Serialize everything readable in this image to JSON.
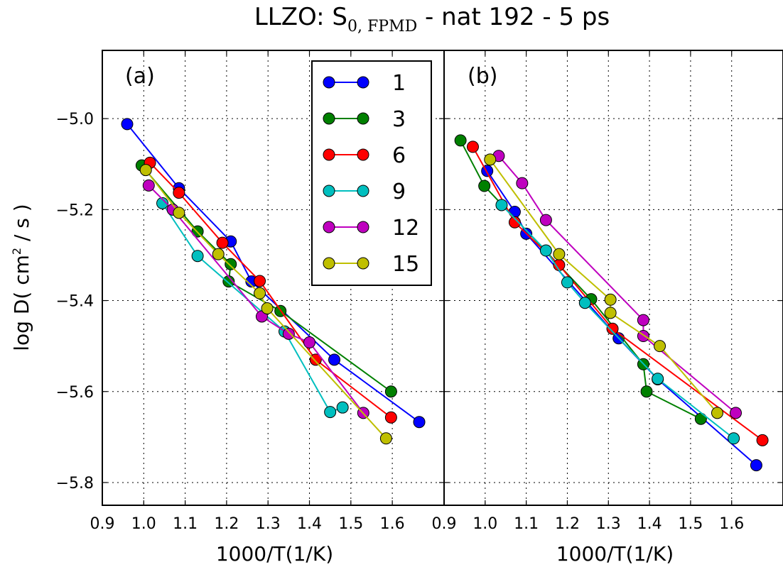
{
  "figure": {
    "title_main": "LLZO: S",
    "title_sub": "0, FPMD",
    "title_rest": " - nat 192 - 5 ps",
    "ylabel": "log D( cm",
    "ylabel_sup": "2",
    "ylabel_end": " / s )"
  },
  "chart_data": [
    {
      "type": "line",
      "panel_label": "(a)",
      "xlabel": "1000/T(1/K)",
      "xlim": [
        0.9,
        1.725
      ],
      "ylim": [
        -5.85,
        -4.85
      ],
      "xticks": [
        0.9,
        1.0,
        1.1,
        1.2,
        1.3,
        1.4,
        1.5,
        1.6
      ],
      "xtick_labels": [
        "0.9",
        "1.0",
        "1.1",
        "1.2",
        "1.3",
        "1.4",
        "1.5",
        "1.6"
      ],
      "yticks": [
        -5.0,
        -5.2,
        -5.4,
        -5.6,
        -5.8
      ],
      "ytick_labels": [
        "−5.0",
        "−5.2",
        "−5.4",
        "−5.6",
        "−5.8"
      ],
      "grid": true,
      "legend_position": "top-right",
      "series": [
        {
          "name": "1",
          "color": "#0000ff",
          "x": [
            0.96,
            1.085,
            1.21,
            1.26,
            1.46,
            1.665
          ],
          "y": [
            -5.012,
            -5.153,
            -5.27,
            -5.358,
            -5.53,
            -5.667
          ]
        },
        {
          "name": "3",
          "color": "#008000",
          "x": [
            0.995,
            1.13,
            1.21,
            1.205,
            1.33,
            1.597
          ],
          "y": [
            -5.103,
            -5.248,
            -5.32,
            -5.358,
            -5.423,
            -5.6
          ]
        },
        {
          "name": "6",
          "color": "#ff0000",
          "x": [
            1.015,
            1.085,
            1.19,
            1.28,
            1.415,
            1.597
          ],
          "y": [
            -5.097,
            -5.163,
            -5.273,
            -5.357,
            -5.53,
            -5.657
          ]
        },
        {
          "name": "9",
          "color": "#00bfbf",
          "x": [
            1.045,
            1.13,
            1.34,
            1.45,
            1.48
          ],
          "y": [
            -5.186,
            -5.302,
            -5.468,
            -5.645,
            -5.635
          ]
        },
        {
          "name": "12",
          "color": "#bf00bf",
          "x": [
            1.012,
            1.07,
            1.285,
            1.35,
            1.4,
            1.53
          ],
          "y": [
            -5.147,
            -5.2,
            -5.435,
            -5.473,
            -5.492,
            -5.647
          ]
        },
        {
          "name": "15",
          "color": "#bfbf00",
          "x": [
            1.005,
            1.085,
            1.18,
            1.28,
            1.298,
            1.585
          ],
          "y": [
            -5.113,
            -5.207,
            -5.298,
            -5.384,
            -5.417,
            -5.703
          ]
        }
      ]
    },
    {
      "type": "line",
      "panel_label": "(b)",
      "xlabel": "1000/T(1/K)",
      "xlim": [
        0.9,
        1.725
      ],
      "ylim": [
        -5.85,
        -4.85
      ],
      "xticks": [
        0.9,
        1.0,
        1.1,
        1.2,
        1.3,
        1.4,
        1.5,
        1.6
      ],
      "xtick_labels": [
        "0.9",
        "1.0",
        "1.1",
        "1.2",
        "1.3",
        "1.4",
        "1.5",
        "1.6"
      ],
      "yticks": [
        -5.0,
        -5.2,
        -5.4,
        -5.6,
        -5.8
      ],
      "grid": true,
      "series": [
        {
          "name": "1",
          "color": "#0000ff",
          "x": [
            1.005,
            1.072,
            1.1,
            1.325,
            1.42,
            1.66
          ],
          "y": [
            -5.115,
            -5.205,
            -5.253,
            -5.483,
            -5.573,
            -5.762
          ]
        },
        {
          "name": "3",
          "color": "#008000",
          "x": [
            0.94,
            0.998,
            1.258,
            1.385,
            1.393,
            1.525
          ],
          "y": [
            -5.048,
            -5.148,
            -5.397,
            -5.54,
            -5.6,
            -5.66
          ]
        },
        {
          "name": "6",
          "color": "#ff0000",
          "x": [
            0.97,
            1.072,
            1.18,
            1.31,
            1.675
          ],
          "y": [
            -5.062,
            -5.228,
            -5.322,
            -5.462,
            -5.707
          ]
        },
        {
          "name": "9",
          "color": "#00bfbf",
          "x": [
            1.04,
            1.148,
            1.2,
            1.243,
            1.42,
            1.605
          ],
          "y": [
            -5.19,
            -5.29,
            -5.36,
            -5.405,
            -5.572,
            -5.703
          ]
        },
        {
          "name": "12",
          "color": "#bf00bf",
          "x": [
            1.033,
            1.09,
            1.148,
            1.385,
            1.385,
            1.61
          ],
          "y": [
            -5.082,
            -5.142,
            -5.223,
            -5.443,
            -5.478,
            -5.647
          ]
        },
        {
          "name": "15",
          "color": "#bfbf00",
          "x": [
            1.012,
            1.18,
            1.305,
            1.305,
            1.425,
            1.565
          ],
          "y": [
            -5.09,
            -5.298,
            -5.398,
            -5.427,
            -5.5,
            -5.647
          ]
        }
      ]
    }
  ]
}
